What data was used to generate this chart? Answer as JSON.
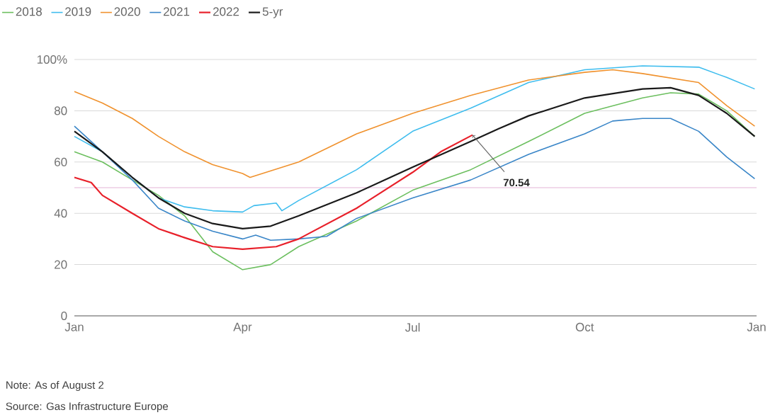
{
  "chart_data": {
    "type": "line",
    "series": [
      {
        "name": "2018",
        "color": "#6cbf5f",
        "x": [
          "2022-01-01",
          "2022-01-16",
          "2022-02-01",
          "2022-02-15",
          "2022-03-01",
          "2022-03-16",
          "2022-04-01",
          "2022-04-16",
          "2022-05-01",
          "2022-06-01",
          "2022-07-01",
          "2022-08-01",
          "2022-09-01",
          "2022-10-01",
          "2022-11-01",
          "2022-11-16",
          "2022-12-01",
          "2022-12-16",
          "2022-12-31"
        ],
        "values": [
          64,
          60,
          53,
          47,
          39,
          25,
          18,
          20,
          27,
          37,
          49,
          57,
          68,
          79,
          85,
          87,
          86.5,
          80,
          70
        ]
      },
      {
        "name": "2019",
        "color": "#3fbdee",
        "x": [
          "2022-01-01",
          "2022-01-16",
          "2022-02-01",
          "2022-02-15",
          "2022-03-01",
          "2022-03-16",
          "2022-04-01",
          "2022-04-07",
          "2022-04-19",
          "2022-04-22",
          "2022-05-01",
          "2022-06-01",
          "2022-07-01",
          "2022-08-01",
          "2022-09-01",
          "2022-10-01",
          "2022-11-01",
          "2022-12-01",
          "2022-12-16",
          "2022-12-31"
        ],
        "values": [
          70,
          64,
          54,
          46,
          42.5,
          41,
          40.5,
          43,
          44,
          41,
          45,
          57,
          72,
          81,
          91,
          96,
          97.5,
          97,
          93,
          88.5
        ]
      },
      {
        "name": "2020",
        "color": "#f0922e",
        "x": [
          "2022-01-01",
          "2022-01-16",
          "2022-02-01",
          "2022-02-15",
          "2022-03-01",
          "2022-03-16",
          "2022-04-01",
          "2022-04-05",
          "2022-05-01",
          "2022-06-01",
          "2022-07-01",
          "2022-08-01",
          "2022-09-01",
          "2022-10-01",
          "2022-10-16",
          "2022-11-01",
          "2022-12-01",
          "2022-12-16",
          "2022-12-31"
        ],
        "values": [
          87.5,
          83,
          77,
          70,
          64,
          59,
          55.5,
          54,
          60,
          71,
          79,
          86,
          92,
          95,
          96,
          94.5,
          91,
          82,
          74
        ]
      },
      {
        "name": "2021",
        "color": "#3a86c8",
        "x": [
          "2022-01-01",
          "2022-01-16",
          "2022-02-01",
          "2022-02-15",
          "2022-03-01",
          "2022-03-16",
          "2022-04-01",
          "2022-04-08",
          "2022-04-16",
          "2022-05-01",
          "2022-05-16",
          "2022-06-01",
          "2022-07-01",
          "2022-08-01",
          "2022-09-01",
          "2022-10-01",
          "2022-10-16",
          "2022-11-01",
          "2022-11-16",
          "2022-12-01",
          "2022-12-16",
          "2022-12-31"
        ],
        "values": [
          74,
          64,
          53,
          42,
          37,
          33,
          30,
          31.5,
          29.5,
          30,
          31,
          38,
          46,
          53,
          63,
          71,
          76,
          77,
          77,
          72,
          62,
          53.5
        ]
      },
      {
        "name": "2022",
        "color": "#e8202a",
        "x": [
          "2022-01-01",
          "2022-01-10",
          "2022-01-16",
          "2022-02-01",
          "2022-02-15",
          "2022-03-01",
          "2022-03-16",
          "2022-04-01",
          "2022-04-10",
          "2022-04-19",
          "2022-05-01",
          "2022-06-01",
          "2022-07-01",
          "2022-07-16",
          "2022-08-02"
        ],
        "values": [
          54,
          52,
          47,
          40,
          34,
          30.5,
          27,
          26,
          26.5,
          27,
          30,
          42,
          56,
          64,
          70.54
        ]
      },
      {
        "name": "5-yr",
        "color": "#1a1a1a",
        "x": [
          "2022-01-01",
          "2022-01-16",
          "2022-02-01",
          "2022-02-15",
          "2022-03-01",
          "2022-03-16",
          "2022-04-01",
          "2022-04-16",
          "2022-05-01",
          "2022-06-01",
          "2022-07-01",
          "2022-08-01",
          "2022-08-16",
          "2022-09-01",
          "2022-10-01",
          "2022-11-01",
          "2022-11-16",
          "2022-12-01",
          "2022-12-16",
          "2022-12-31"
        ],
        "values": [
          72,
          64,
          54,
          46,
          40,
          36,
          34,
          35,
          39,
          48,
          58,
          68,
          73,
          78,
          85,
          88.5,
          89,
          86,
          79,
          70
        ]
      }
    ],
    "xlim": [
      "2022-01-01",
      "2023-01-01"
    ],
    "xticks": [
      {
        "value": "2022-01-01",
        "label": "Jan"
      },
      {
        "value": "2022-04-01",
        "label": "Apr"
      },
      {
        "value": "2022-07-01",
        "label": "Jul"
      },
      {
        "value": "2022-10-01",
        "label": "Oct"
      },
      {
        "value": "2023-01-01",
        "label": "Jan"
      }
    ],
    "ylim": [
      0,
      100
    ],
    "yticks": [
      0,
      20,
      40,
      60,
      80,
      {
        "value": 100,
        "label": "100%"
      }
    ],
    "grid": "y",
    "legend": "top left",
    "ref_lines": [
      {
        "axis": "y",
        "value": 50,
        "color": "#e4b4d8"
      }
    ],
    "annotations": [
      {
        "text": "70.54",
        "x": "2022-08-02",
        "y": 70.54
      },
      "Note: As of August 2",
      "Source: Gas Infrastructure Europe"
    ]
  }
}
